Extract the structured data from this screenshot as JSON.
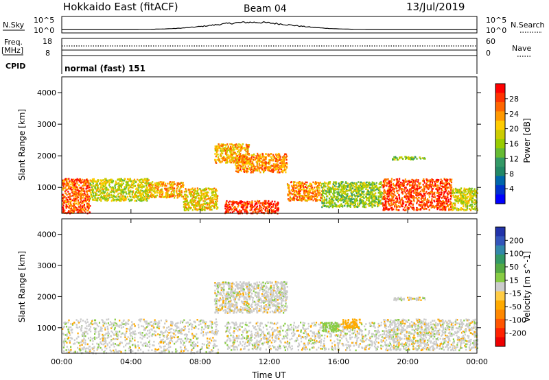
{
  "header": {
    "station": "Hokkaido East (fitACF)",
    "beam": "Beam 04",
    "date": "13/Jul/2019"
  },
  "strips": {
    "nsky_label": "N.Sky",
    "nsky_ticks": [
      "10^5",
      "10^0"
    ],
    "nsky_right_ticks": [
      "10^5",
      "10^0"
    ],
    "nsearch_label": "N.Search",
    "freq_label_1": "Freq.",
    "freq_label_2": "[MHz]",
    "freq_ticks": [
      "18",
      "8"
    ],
    "nave_ticks": [
      "60",
      "0"
    ],
    "nave_label": "Nave",
    "cpid_label": "CPID",
    "cpid_text": "normal (fast) 151"
  },
  "chart_data": [
    {
      "type": "heatmap",
      "name": "power",
      "ylabel": "Slant Range [km]",
      "y_ticks": [
        1000,
        2000,
        3000,
        4000
      ],
      "ylim": [
        180,
        4500
      ],
      "xlim_hours": [
        0,
        24
      ],
      "colorbar": {
        "label": "Power [dB]",
        "ticks": [
          "28",
          "24",
          "20",
          "16",
          "12",
          "8",
          "4"
        ],
        "colors": [
          "#ff0000",
          "#ff3300",
          "#ff6600",
          "#ff9900",
          "#ffcc00",
          "#cccc00",
          "#99cc00",
          "#66bb33",
          "#339966",
          "#228866",
          "#0066aa",
          "#0033cc",
          "#0000ff"
        ]
      },
      "regions": [
        {
          "t0": 0.0,
          "t1": 1.6,
          "r0": 200,
          "r1": 1300,
          "level": 26
        },
        {
          "t0": 1.6,
          "t1": 5.0,
          "r0": 600,
          "r1": 1300,
          "level": 18
        },
        {
          "t0": 5.0,
          "t1": 7.0,
          "r0": 700,
          "r1": 1200,
          "level": 22
        },
        {
          "t0": 7.0,
          "t1": 9.0,
          "r0": 300,
          "r1": 1000,
          "level": 20
        },
        {
          "t0": 8.8,
          "t1": 10.8,
          "r0": 1800,
          "r1": 2400,
          "level": 22
        },
        {
          "t0": 10.0,
          "t1": 13.0,
          "r0": 1500,
          "r1": 2100,
          "level": 24
        },
        {
          "t0": 9.4,
          "t1": 12.5,
          "r0": 200,
          "r1": 600,
          "level": 28
        },
        {
          "t0": 13.0,
          "t1": 15.0,
          "r0": 600,
          "r1": 1200,
          "level": 24
        },
        {
          "t0": 15.0,
          "t1": 18.5,
          "r0": 400,
          "r1": 1200,
          "level": 16
        },
        {
          "t0": 18.5,
          "t1": 22.5,
          "r0": 300,
          "r1": 1300,
          "level": 27
        },
        {
          "t0": 19.0,
          "t1": 21.0,
          "r0": 1900,
          "r1": 2000,
          "level": 16
        },
        {
          "t0": 22.5,
          "t1": 24.0,
          "r0": 300,
          "r1": 1000,
          "level": 18
        }
      ]
    },
    {
      "type": "heatmap",
      "name": "velocity",
      "ylabel": "Slant Range [km]",
      "y_ticks": [
        1000,
        2000,
        3000,
        4000
      ],
      "ylim": [
        180,
        4500
      ],
      "xlim_hours": [
        0,
        24
      ],
      "x_ticks": [
        "00:00",
        "04:00",
        "08:00",
        "12:00",
        "16:00",
        "20:00",
        "00:00"
      ],
      "xlabel": "Time UT",
      "colorbar": {
        "label": "Velocity [m s^-1]",
        "ticks": [
          "200",
          "100",
          "50",
          "15",
          "-15",
          "-50",
          "-100",
          "-200"
        ],
        "colors": [
          "#2233aa",
          "#3355bb",
          "#3388aa",
          "#339966",
          "#55aa44",
          "#88cc44",
          "#cccccc",
          "#ffcc44",
          "#ffaa00",
          "#ff8800",
          "#ff5500",
          "#ff2200",
          "#ee0000"
        ]
      },
      "regions": [
        {
          "t0": 0.0,
          "t1": 9.0,
          "r0": 200,
          "r1": 1300,
          "value": 0
        },
        {
          "t0": 8.8,
          "t1": 13.0,
          "r0": 1500,
          "r1": 2500,
          "value": 0
        },
        {
          "t0": 9.4,
          "t1": 18.5,
          "r0": 300,
          "r1": 1200,
          "value": 0
        },
        {
          "t0": 15.0,
          "t1": 16.0,
          "r0": 900,
          "r1": 1200,
          "value": 40
        },
        {
          "t0": 16.2,
          "t1": 17.2,
          "r0": 1000,
          "r1": 1300,
          "value": -40
        },
        {
          "t0": 18.5,
          "t1": 24.0,
          "r0": 300,
          "r1": 1300,
          "value": 0
        },
        {
          "t0": 19.0,
          "t1": 21.0,
          "r0": 1900,
          "r1": 2000,
          "value": 0
        }
      ]
    }
  ]
}
